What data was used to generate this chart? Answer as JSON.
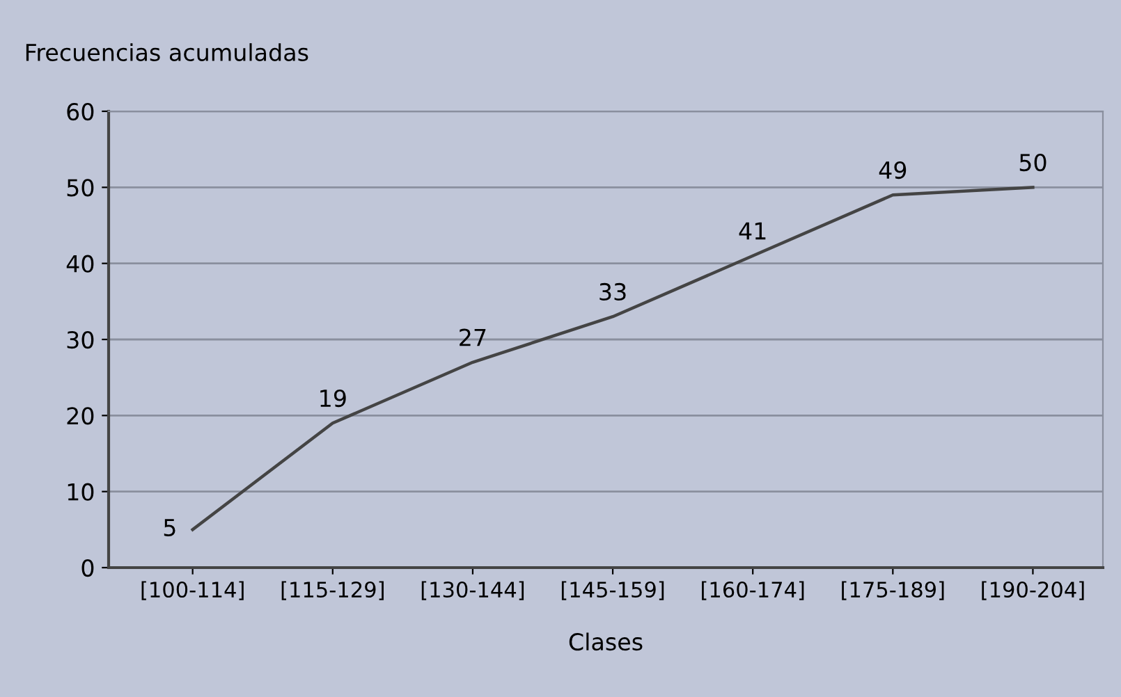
{
  "chart_data": {
    "type": "line",
    "ylabel": "Frecuencias acumuladas",
    "xlabel": "Clases",
    "categories": [
      "[100-114]",
      "[115-129]",
      "[130-144]",
      "[145-159]",
      "[160-174]",
      "[175-189]",
      "[190-204]"
    ],
    "values": [
      5,
      19,
      27,
      33,
      41,
      49,
      50
    ],
    "color": "#444444",
    "ylim": [
      0,
      60
    ],
    "yticks": [
      0,
      10,
      20,
      30,
      40,
      50,
      60
    ],
    "grid": "y",
    "data_labels": true,
    "marker": "none",
    "line_style": "solid"
  }
}
